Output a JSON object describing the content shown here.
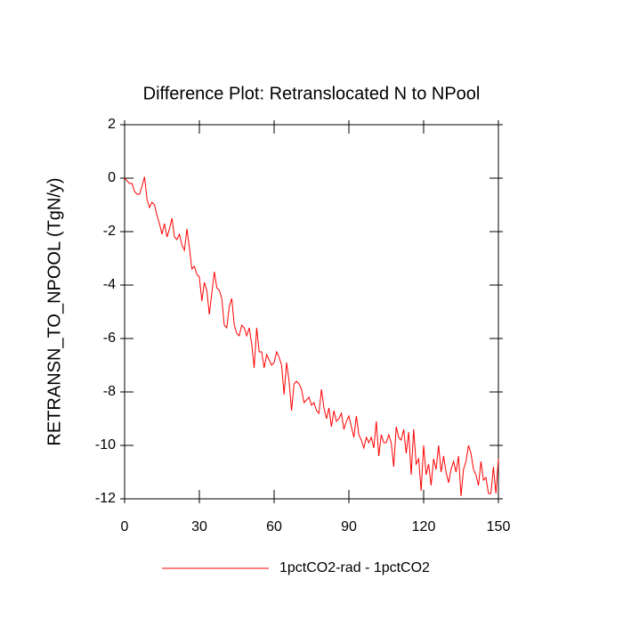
{
  "chart_data": {
    "type": "line",
    "title": "Difference Plot: Retranslocated N to NPool",
    "y_label": "RETRANSN_TO_NPOOL  (TgN/y)",
    "x": [
      0,
      1,
      2,
      3,
      4,
      5,
      6,
      7,
      8,
      9,
      10,
      11,
      12,
      13,
      14,
      15,
      16,
      17,
      18,
      19,
      20,
      21,
      22,
      23,
      24,
      25,
      26,
      27,
      28,
      29,
      30,
      31,
      32,
      33,
      34,
      35,
      36,
      37,
      38,
      39,
      40,
      41,
      42,
      43,
      44,
      45,
      46,
      47,
      48,
      49,
      50,
      51,
      52,
      53,
      54,
      55,
      56,
      57,
      58,
      59,
      60,
      61,
      62,
      63,
      64,
      65,
      66,
      67,
      68,
      69,
      70,
      71,
      72,
      73,
      74,
      75,
      76,
      77,
      78,
      79,
      80,
      81,
      82,
      83,
      84,
      85,
      86,
      87,
      88,
      89,
      90,
      91,
      92,
      93,
      94,
      95,
      96,
      97,
      98,
      99,
      100,
      101,
      102,
      103,
      104,
      105,
      106,
      107,
      108,
      109,
      110,
      111,
      112,
      113,
      114,
      115,
      116,
      117,
      118,
      119,
      120,
      121,
      122,
      123,
      124,
      125,
      126,
      127,
      128,
      129,
      130,
      131,
      132,
      133,
      134,
      135,
      136,
      137,
      138,
      139,
      140,
      141,
      142,
      143,
      144,
      145,
      146,
      147,
      148,
      149,
      150
    ],
    "series": [
      {
        "name": "1pctCO2-rad - 1pctCO2",
        "color": "#ff0000",
        "values": [
          0,
          -0.1,
          -0.2,
          -0.2,
          -0.5,
          -0.6,
          -0.6,
          -0.3,
          0.05,
          -0.8,
          -1.1,
          -0.9,
          -1.0,
          -1.4,
          -1.7,
          -2.1,
          -1.7,
          -2.2,
          -1.9,
          -1.5,
          -2.2,
          -2.3,
          -2.1,
          -2.5,
          -2.7,
          -1.9,
          -2.6,
          -3.4,
          -3.3,
          -3.6,
          -3.7,
          -4.6,
          -3.9,
          -4.2,
          -5.1,
          -4.3,
          -3.5,
          -4.1,
          -4.2,
          -4.5,
          -5.5,
          -5.6,
          -4.8,
          -4.5,
          -5.5,
          -5.8,
          -5.9,
          -5.5,
          -5.6,
          -5.9,
          -5.6,
          -6.2,
          -7.1,
          -5.6,
          -6.5,
          -6.5,
          -7.1,
          -6.6,
          -6.8,
          -7.0,
          -6.9,
          -6.5,
          -6.7,
          -7.0,
          -8.1,
          -6.9,
          -7.6,
          -8.7,
          -7.7,
          -7.6,
          -7.7,
          -7.9,
          -8.4,
          -8.3,
          -8.2,
          -8.5,
          -8.4,
          -8.7,
          -8.8,
          -7.9,
          -8.6,
          -9.0,
          -8.6,
          -9.3,
          -8.7,
          -9.1,
          -9.0,
          -8.8,
          -9.4,
          -9.1,
          -8.9,
          -9.3,
          -9.7,
          -8.9,
          -9.6,
          -9.8,
          -10.1,
          -9.7,
          -9.9,
          -9.7,
          -10.1,
          -9.1,
          -10.4,
          -9.6,
          -9.9,
          -9.9,
          -9.6,
          -9.9,
          -10.8,
          -9.3,
          -9.7,
          -9.8,
          -9.4,
          -10.3,
          -9.5,
          -11.1,
          -9.4,
          -10.7,
          -10.5,
          -11.7,
          -10.0,
          -11.1,
          -10.7,
          -11.5,
          -10.5,
          -10.9,
          -10.0,
          -11.0,
          -10.4,
          -11.0,
          -11.4,
          -10.9,
          -10.6,
          -11.0,
          -10.4,
          -11.9,
          -10.9,
          -10.6,
          -10.0,
          -10.3,
          -10.9,
          -11.1,
          -11.5,
          -10.6,
          -11.3,
          -11.2,
          -11.8,
          -11.8,
          -10.8,
          -11.8,
          -10.5
        ]
      }
    ],
    "xlim": [
      0,
      150
    ],
    "xticks": [
      0,
      30,
      60,
      90,
      120,
      150
    ],
    "ylim": [
      -12,
      2
    ],
    "yticks": [
      2,
      0,
      -2,
      -4,
      -6,
      -8,
      -10,
      -12
    ]
  }
}
